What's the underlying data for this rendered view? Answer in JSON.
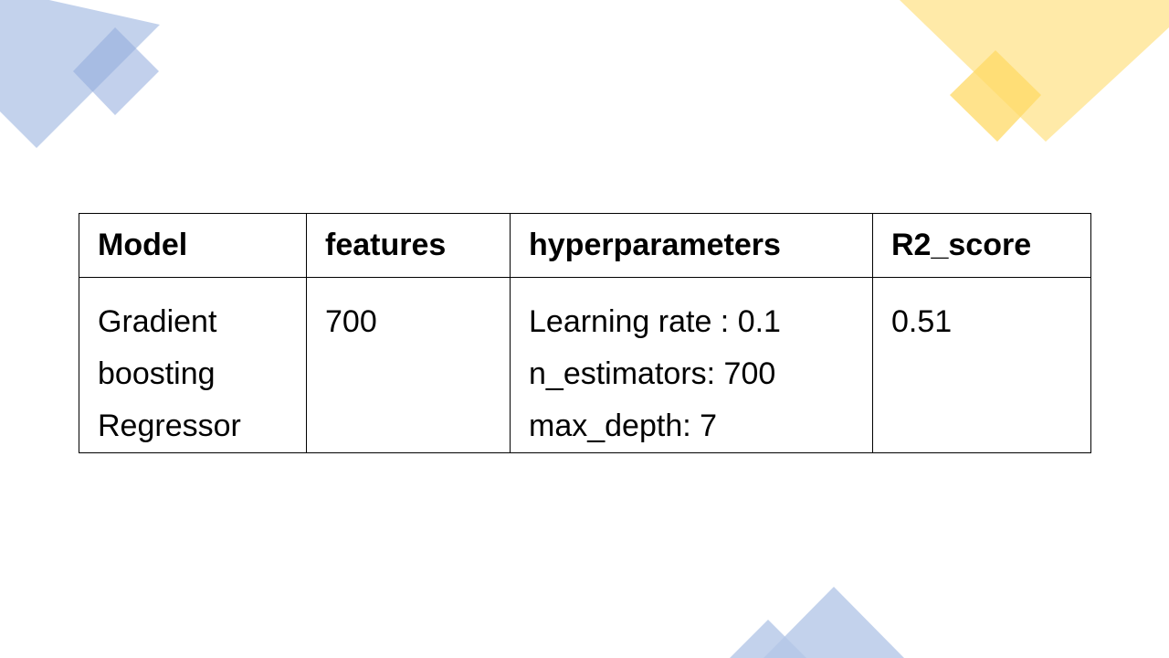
{
  "colors": {
    "blue_shape": "#b4c7e7",
    "blue_overlap": "#8faadc",
    "yellow_shape": "#ffe699",
    "yellow_overlap": "#ffd966",
    "border": "#000000"
  },
  "table": {
    "headers": [
      "Model",
      "features",
      "hyperparameters",
      "R2_score"
    ],
    "row": {
      "model": [
        "Gradient",
        "boosting",
        "Regressor"
      ],
      "features": "700",
      "hyperparameters": [
        "Learning rate : 0.1",
        "n_estimators: 700",
        "max_depth: 7"
      ],
      "r2_score": "0.51"
    }
  }
}
